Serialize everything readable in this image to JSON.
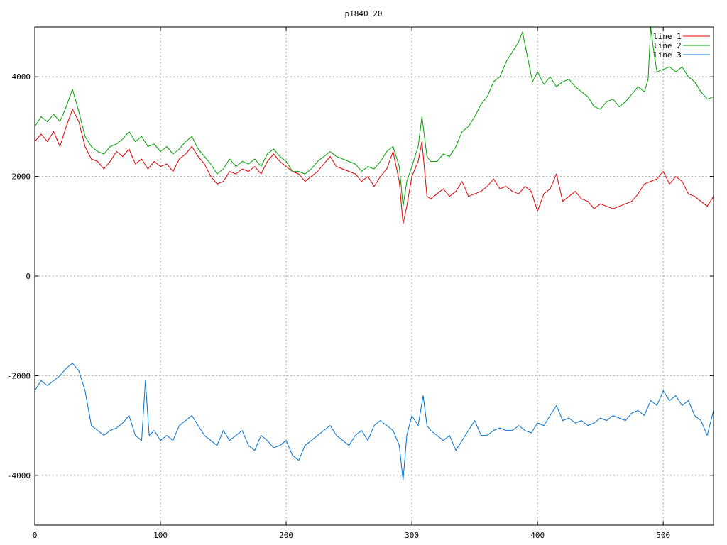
{
  "chart_data": {
    "type": "line",
    "title": "p1840_20",
    "xlabel": "",
    "ylabel": "",
    "xlim": [
      0,
      540
    ],
    "ylim": [
      -5000,
      5000
    ],
    "x_ticks": [
      0,
      100,
      200,
      300,
      400,
      500
    ],
    "y_ticks": [
      -4000,
      -2000,
      0,
      2000,
      4000
    ],
    "grid": true,
    "legend_position": "top-right",
    "series": [
      {
        "name": "line 1",
        "color": "#e00000",
        "x": [
          0,
          5,
          10,
          15,
          20,
          25,
          30,
          35,
          40,
          45,
          50,
          55,
          60,
          65,
          70,
          75,
          80,
          85,
          90,
          95,
          100,
          105,
          110,
          115,
          120,
          125,
          130,
          135,
          140,
          145,
          150,
          155,
          160,
          165,
          170,
          175,
          180,
          185,
          190,
          195,
          200,
          205,
          210,
          215,
          220,
          225,
          230,
          235,
          240,
          245,
          250,
          255,
          260,
          265,
          270,
          275,
          280,
          285,
          290,
          293,
          296,
          300,
          305,
          308,
          312,
          315,
          320,
          325,
          330,
          335,
          340,
          345,
          350,
          355,
          360,
          365,
          370,
          375,
          380,
          385,
          390,
          395,
          400,
          405,
          410,
          415,
          420,
          425,
          430,
          435,
          440,
          445,
          450,
          455,
          460,
          465,
          470,
          475,
          480,
          485,
          490,
          495,
          500,
          505,
          510,
          515,
          520,
          525,
          530,
          535,
          540
        ],
        "y": [
          2700,
          2850,
          2700,
          2900,
          2600,
          3000,
          3350,
          3100,
          2600,
          2350,
          2300,
          2150,
          2300,
          2500,
          2400,
          2550,
          2250,
          2350,
          2150,
          2300,
          2200,
          2250,
          2100,
          2350,
          2450,
          2600,
          2400,
          2250,
          2000,
          1850,
          1900,
          2100,
          2050,
          2150,
          2100,
          2200,
          2050,
          2300,
          2450,
          2300,
          2200,
          2100,
          2050,
          1900,
          2000,
          2100,
          2250,
          2400,
          2200,
          2150,
          2100,
          2050,
          1900,
          2000,
          1800,
          2000,
          2150,
          2500,
          1900,
          1050,
          1400,
          2000,
          2300,
          2700,
          1600,
          1550,
          1650,
          1750,
          1600,
          1700,
          1900,
          1600,
          1650,
          1700,
          1800,
          1950,
          1750,
          1800,
          1700,
          1650,
          1800,
          1700,
          1300,
          1650,
          1750,
          2050,
          1500,
          1600,
          1700,
          1550,
          1500,
          1350,
          1450,
          1400,
          1350,
          1400,
          1450,
          1500,
          1650,
          1850,
          1900,
          1950,
          2100,
          1850,
          2000,
          1900,
          1650,
          1600,
          1500,
          1400,
          1600
        ]
      },
      {
        "name": "line 2",
        "color": "#00a000",
        "x": [
          0,
          5,
          10,
          15,
          20,
          25,
          30,
          35,
          40,
          45,
          50,
          55,
          60,
          65,
          70,
          75,
          80,
          85,
          90,
          95,
          100,
          105,
          110,
          115,
          120,
          125,
          130,
          135,
          140,
          145,
          150,
          155,
          160,
          165,
          170,
          175,
          180,
          185,
          190,
          195,
          200,
          205,
          210,
          215,
          220,
          225,
          230,
          235,
          240,
          245,
          250,
          255,
          260,
          265,
          270,
          275,
          280,
          285,
          290,
          293,
          296,
          300,
          305,
          308,
          312,
          315,
          320,
          325,
          330,
          335,
          340,
          345,
          350,
          355,
          360,
          365,
          370,
          375,
          380,
          385,
          388,
          392,
          396,
          400,
          405,
          410,
          415,
          420,
          425,
          430,
          435,
          440,
          445,
          450,
          455,
          460,
          465,
          470,
          475,
          480,
          485,
          488,
          490,
          492,
          495,
          500,
          505,
          510,
          515,
          520,
          525,
          530,
          535,
          540
        ],
        "y": [
          3000,
          3200,
          3100,
          3250,
          3100,
          3400,
          3750,
          3300,
          2800,
          2600,
          2500,
          2450,
          2600,
          2650,
          2750,
          2900,
          2700,
          2800,
          2600,
          2650,
          2500,
          2600,
          2450,
          2550,
          2700,
          2800,
          2550,
          2400,
          2250,
          2050,
          2150,
          2350,
          2200,
          2300,
          2250,
          2350,
          2200,
          2450,
          2550,
          2400,
          2300,
          2100,
          2100,
          2050,
          2150,
          2300,
          2400,
          2500,
          2400,
          2350,
          2300,
          2250,
          2100,
          2200,
          2150,
          2300,
          2500,
          2600,
          2200,
          1400,
          1900,
          2200,
          2600,
          3200,
          2400,
          2300,
          2300,
          2450,
          2400,
          2600,
          2900,
          3000,
          3200,
          3450,
          3600,
          3900,
          4000,
          4300,
          4500,
          4700,
          4900,
          4400,
          3900,
          4100,
          3850,
          4000,
          3800,
          3900,
          3950,
          3800,
          3700,
          3600,
          3400,
          3350,
          3500,
          3550,
          3400,
          3500,
          3650,
          3800,
          3700,
          3950,
          5000,
          4600,
          4100,
          4150,
          4200,
          4100,
          4200,
          4000,
          3900,
          3700,
          3550,
          3600
        ]
      },
      {
        "name": "line 3",
        "color": "#0070d0",
        "x": [
          0,
          5,
          10,
          15,
          20,
          25,
          30,
          35,
          40,
          45,
          50,
          55,
          60,
          65,
          70,
          75,
          80,
          85,
          88,
          91,
          95,
          100,
          105,
          110,
          115,
          120,
          125,
          130,
          135,
          140,
          145,
          150,
          155,
          160,
          165,
          170,
          175,
          180,
          185,
          190,
          195,
          200,
          205,
          210,
          215,
          220,
          225,
          230,
          235,
          240,
          245,
          250,
          255,
          260,
          265,
          270,
          275,
          280,
          285,
          290,
          293,
          296,
          300,
          305,
          309,
          312,
          315,
          320,
          325,
          330,
          335,
          340,
          345,
          350,
          355,
          360,
          365,
          370,
          375,
          380,
          385,
          390,
          395,
          400,
          405,
          410,
          415,
          420,
          425,
          430,
          435,
          440,
          445,
          450,
          455,
          460,
          465,
          470,
          475,
          480,
          485,
          490,
          495,
          500,
          505,
          510,
          515,
          520,
          525,
          530,
          535,
          540
        ],
        "y": [
          -2300,
          -2100,
          -2200,
          -2100,
          -2000,
          -1850,
          -1750,
          -1900,
          -2300,
          -3000,
          -3100,
          -3200,
          -3100,
          -3050,
          -2950,
          -2800,
          -3200,
          -3300,
          -2100,
          -3200,
          -3100,
          -3300,
          -3200,
          -3300,
          -3000,
          -2900,
          -2800,
          -3000,
          -3200,
          -3300,
          -3400,
          -3100,
          -3300,
          -3200,
          -3100,
          -3400,
          -3500,
          -3200,
          -3300,
          -3450,
          -3400,
          -3300,
          -3600,
          -3700,
          -3400,
          -3300,
          -3200,
          -3100,
          -3000,
          -3200,
          -3300,
          -3400,
          -3200,
          -3100,
          -3300,
          -3000,
          -2900,
          -3000,
          -3100,
          -3400,
          -4100,
          -3200,
          -2800,
          -3000,
          -2400,
          -3000,
          -3100,
          -3200,
          -3300,
          -3200,
          -3500,
          -3300,
          -3100,
          -2900,
          -3200,
          -3200,
          -3100,
          -3050,
          -3100,
          -3100,
          -3000,
          -3100,
          -3150,
          -2950,
          -3000,
          -2800,
          -2600,
          -2900,
          -2850,
          -2950,
          -2900,
          -3000,
          -2950,
          -2850,
          -2900,
          -2800,
          -2850,
          -2900,
          -2750,
          -2700,
          -2800,
          -2500,
          -2600,
          -2300,
          -2500,
          -2400,
          -2600,
          -2500,
          -2800,
          -2900,
          -3200,
          -2700
        ]
      }
    ]
  }
}
